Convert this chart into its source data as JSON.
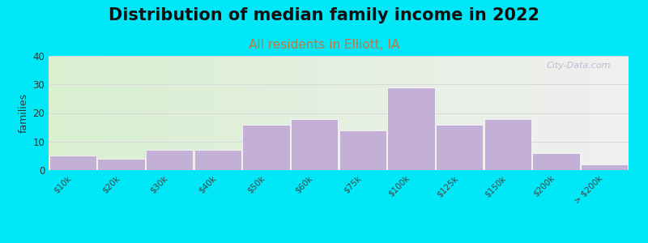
{
  "title": "Distribution of median family income in 2022",
  "subtitle": "All residents in Elliott, IA",
  "ylabel": "families",
  "categories": [
    "$10k",
    "$20k",
    "$30k",
    "$40k",
    "$50k",
    "$60k",
    "$75k",
    "$100k",
    "$125k",
    "$150k",
    "$200k",
    "> $200k"
  ],
  "values": [
    5,
    4,
    7,
    7,
    16,
    18,
    14,
    29,
    16,
    18,
    6,
    2
  ],
  "bar_color": "#c4afd6",
  "bar_edgecolor": "#ffffff",
  "ylim": [
    0,
    40
  ],
  "yticks": [
    0,
    10,
    20,
    30,
    40
  ],
  "background_color": "#00e8f8",
  "plot_bg_left_color": "#d8efd0",
  "plot_bg_right_color": "#f0f0f0",
  "title_fontsize": 15,
  "subtitle_fontsize": 11,
  "subtitle_color": "#c07840",
  "ylabel_fontsize": 9,
  "watermark": "City-Data.com",
  "grid_color": "#d8d8d8"
}
